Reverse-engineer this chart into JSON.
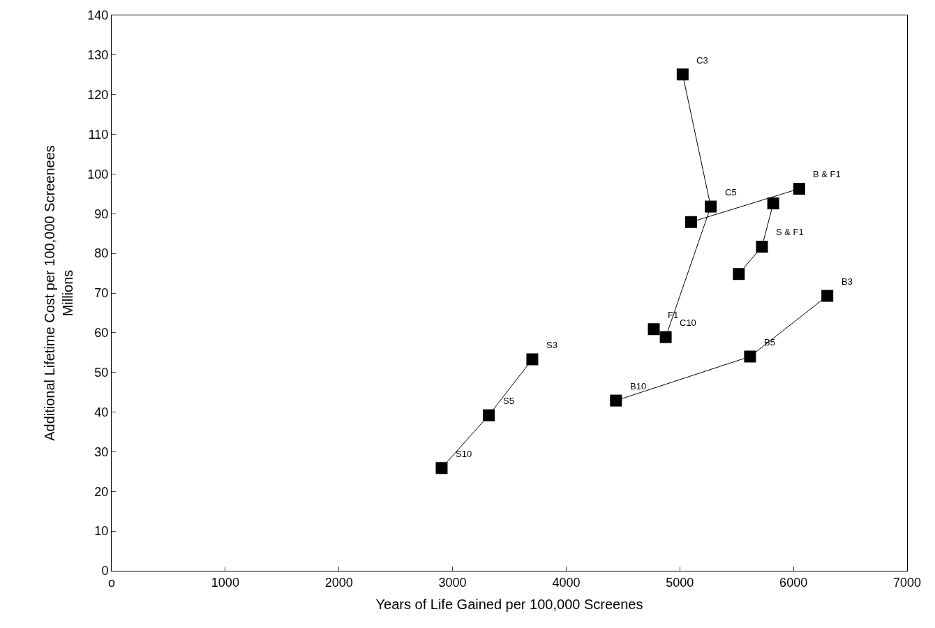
{
  "chart_data": {
    "type": "line",
    "xlabel": "Years of Life Gained per 100,000 Screenes",
    "ylabel": "Additional Lifetime Cost per 100,000 Screenees\nMillions",
    "xlim": [
      0,
      7000
    ],
    "xticks": [
      {
        "value": 0,
        "label": "o"
      },
      1000,
      2000,
      3000,
      4000,
      5000,
      6000,
      7000
    ],
    "ylim": [
      0,
      140
    ],
    "yticks": [
      0,
      10,
      20,
      30,
      40,
      50,
      60,
      70,
      80,
      90,
      100,
      110,
      120,
      130,
      140
    ],
    "marker": "square",
    "line_style": "solid",
    "series": [
      {
        "color": "#000000",
        "x": [
          2904,
          3319,
          3702
        ],
        "values": [
          25.9,
          39.2,
          53.3
        ]
      },
      {
        "color": "#000000",
        "x": [
          4438,
          5618,
          6298
        ],
        "values": [
          42.9,
          54.0,
          69.3
        ]
      },
      {
        "color": "#000000",
        "x": [
          4876,
          5272,
          5025
        ],
        "values": [
          58.9,
          91.8,
          125.1
        ]
      },
      {
        "color": "#000000",
        "type": "scatter",
        "x": [
          4771
        ],
        "values": [
          60.9
        ]
      },
      {
        "color": "#000000",
        "x": [
          5099,
          6051
        ],
        "values": [
          87.9,
          96.3
        ]
      },
      {
        "color": "#000000",
        "x": [
          5519,
          5723,
          5822
        ],
        "values": [
          74.8,
          81.7,
          92.6
        ]
      }
    ],
    "annotations": [
      {
        "text": "C3",
        "x": 5025,
        "y": 125.1
      },
      {
        "text": "C5",
        "x": 5272,
        "y": 91.8
      },
      {
        "text": "B & F1",
        "x": 6051,
        "y": 96.3
      },
      {
        "text": "S & F1",
        "x": 5723,
        "y": 81.7
      },
      {
        "text": "F1",
        "x": 4771,
        "y": 60.9
      },
      {
        "text": "C10",
        "x": 4876,
        "y": 58.9
      },
      {
        "text": "B3",
        "x": 6298,
        "y": 69.3
      },
      {
        "text": "B5",
        "x": 5618,
        "y": 54.0
      },
      {
        "text": "B10",
        "x": 4438,
        "y": 42.9
      },
      {
        "text": "S3",
        "x": 3702,
        "y": 53.3
      },
      {
        "text": "S5",
        "x": 3319,
        "y": 39.2
      },
      {
        "text": "S10",
        "x": 2904,
        "y": 25.9
      }
    ]
  }
}
